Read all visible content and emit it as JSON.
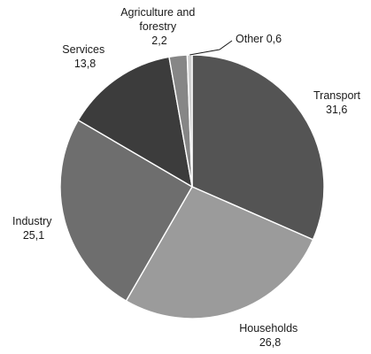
{
  "chart_data": {
    "type": "pie",
    "start": "12 o'clock, clockwise",
    "slices": [
      {
        "name": "Transport",
        "value": 31.6,
        "display": "31,6",
        "color": "#545454"
      },
      {
        "name": "Households",
        "value": 26.8,
        "display": "26,8",
        "color": "#9b9b9b"
      },
      {
        "name": "Industry",
        "value": 25.1,
        "display": "25,1",
        "color": "#6e6e6e"
      },
      {
        "name": "Services",
        "value": 13.8,
        "display": "13,8",
        "color": "#3c3c3c"
      },
      {
        "name": "Agriculture and forestry",
        "name_lines": [
          "Agriculture and",
          "forestry"
        ],
        "value": 2.2,
        "display": "2,2",
        "color": "#868686"
      },
      {
        "name": "Other",
        "value": 0.6,
        "display": "0,6",
        "color": "#cfcfcf",
        "label": "Other 0,6"
      }
    ]
  }
}
